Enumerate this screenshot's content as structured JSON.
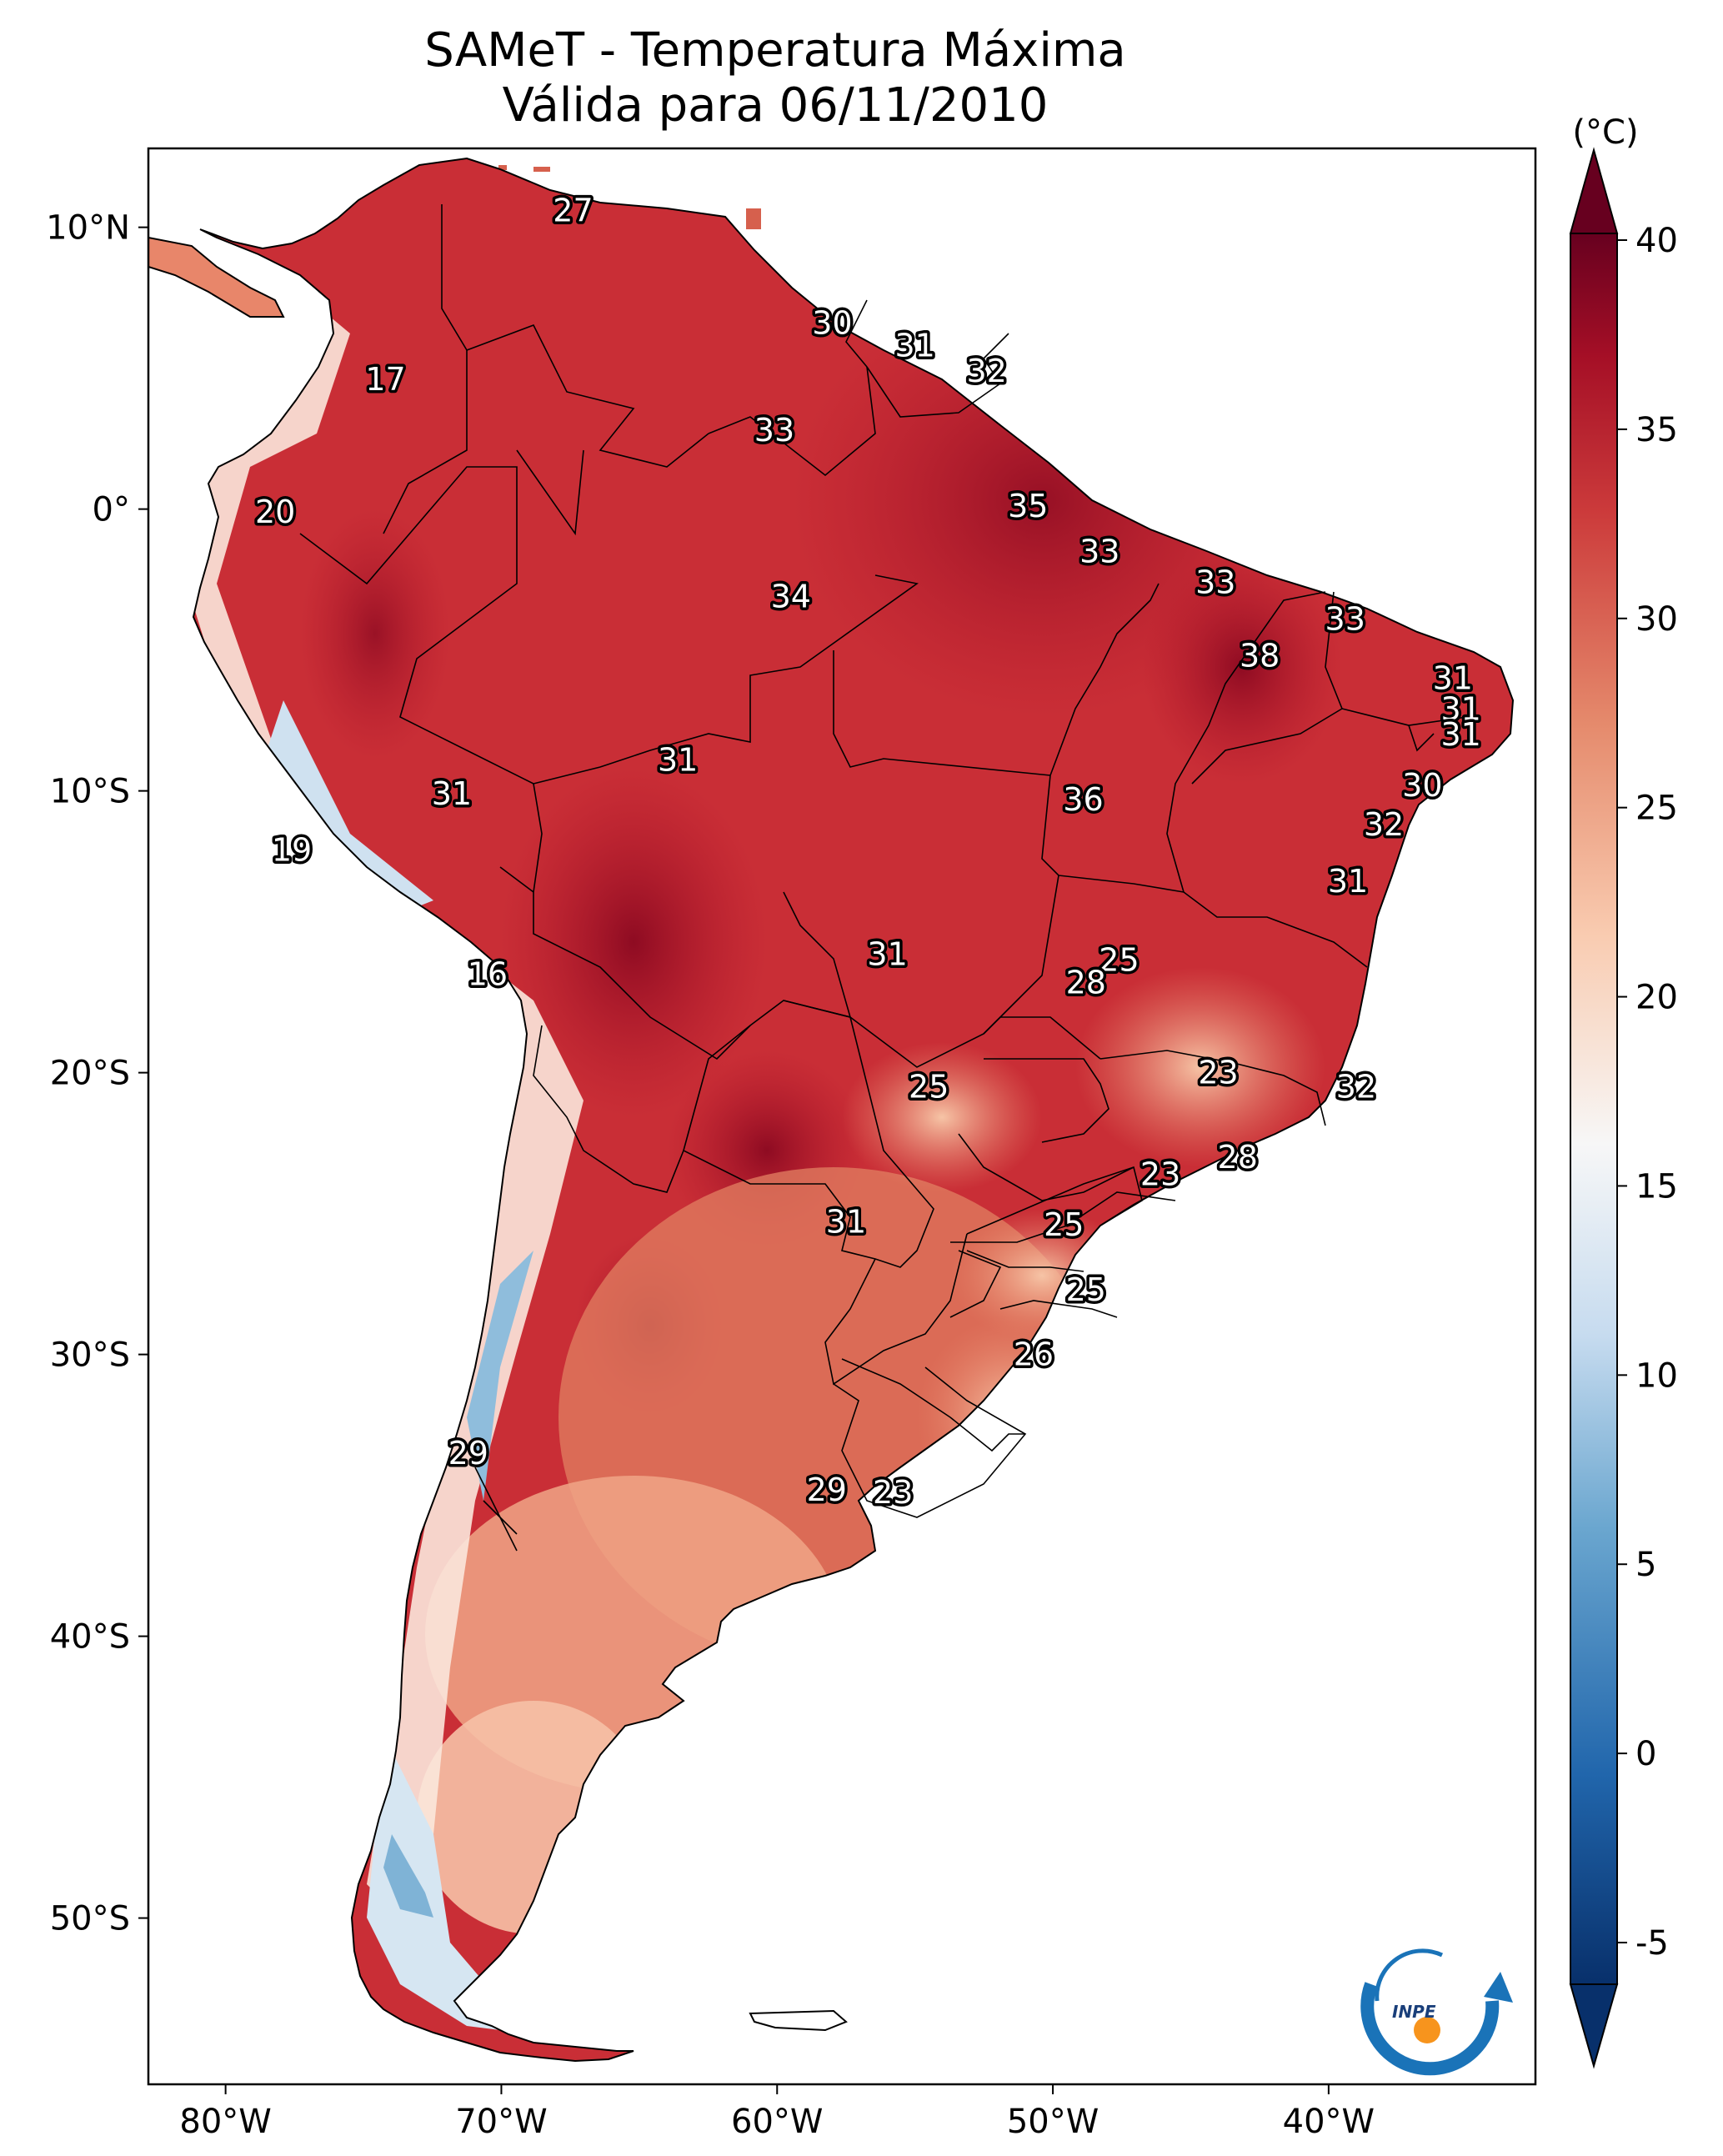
{
  "title": {
    "line1": "SAMeT - Temperatura Máxima",
    "line2": "Válida para 06/11/2010"
  },
  "map": {
    "lon_ticks": [
      {
        "lon": -80,
        "label": "80°W"
      },
      {
        "lon": -70,
        "label": "70°W"
      },
      {
        "lon": -60,
        "label": "60°W"
      },
      {
        "lon": -50,
        "label": "50°W"
      },
      {
        "lon": -40,
        "label": "40°W"
      }
    ],
    "lat_ticks": [
      {
        "lat": 10,
        "label": "10°N"
      },
      {
        "lat": 0,
        "label": "0°"
      },
      {
        "lat": -10,
        "label": "10°S"
      },
      {
        "lat": -20,
        "label": "20°S"
      },
      {
        "lat": -30,
        "label": "30°S"
      },
      {
        "lat": -40,
        "label": "40°S"
      },
      {
        "lat": -50,
        "label": "50°S"
      }
    ],
    "temperature_labels": [
      {
        "lon": -67.4,
        "lat": 10.6,
        "value": "27"
      },
      {
        "lon": -58.0,
        "lat": 6.6,
        "value": "30"
      },
      {
        "lon": -55.0,
        "lat": 5.8,
        "value": "31"
      },
      {
        "lon": -52.4,
        "lat": 4.9,
        "value": "32"
      },
      {
        "lon": -74.2,
        "lat": 4.6,
        "value": "17"
      },
      {
        "lon": -60.1,
        "lat": 2.8,
        "value": "33"
      },
      {
        "lon": -50.9,
        "lat": 0.1,
        "value": "35"
      },
      {
        "lon": -78.2,
        "lat": -0.1,
        "value": "20"
      },
      {
        "lon": -48.3,
        "lat": -1.5,
        "value": "33"
      },
      {
        "lon": -44.1,
        "lat": -2.6,
        "value": "33"
      },
      {
        "lon": -59.5,
        "lat": -3.1,
        "value": "34"
      },
      {
        "lon": -39.4,
        "lat": -3.9,
        "value": "33"
      },
      {
        "lon": -42.5,
        "lat": -5.2,
        "value": "38"
      },
      {
        "lon": -35.5,
        "lat": -6.0,
        "value": "31"
      },
      {
        "lon": -35.2,
        "lat": -7.1,
        "value": "31"
      },
      {
        "lon": -35.2,
        "lat": -8.0,
        "value": "31"
      },
      {
        "lon": -63.6,
        "lat": -8.9,
        "value": "31"
      },
      {
        "lon": -36.6,
        "lat": -9.8,
        "value": "30"
      },
      {
        "lon": -71.8,
        "lat": -10.1,
        "value": "31"
      },
      {
        "lon": -48.9,
        "lat": -10.3,
        "value": "36"
      },
      {
        "lon": -38.0,
        "lat": -11.2,
        "value": "32"
      },
      {
        "lon": -77.6,
        "lat": -12.1,
        "value": "19"
      },
      {
        "lon": -39.3,
        "lat": -13.2,
        "value": "31"
      },
      {
        "lon": -56.0,
        "lat": -15.8,
        "value": "31"
      },
      {
        "lon": -47.6,
        "lat": -16.0,
        "value": "25"
      },
      {
        "lon": -48.8,
        "lat": -16.8,
        "value": "28"
      },
      {
        "lon": -70.5,
        "lat": -16.5,
        "value": "16"
      },
      {
        "lon": -44.0,
        "lat": -20.0,
        "value": "23"
      },
      {
        "lon": -54.5,
        "lat": -20.5,
        "value": "25"
      },
      {
        "lon": -39.0,
        "lat": -20.5,
        "value": "32"
      },
      {
        "lon": -43.3,
        "lat": -23.0,
        "value": "28"
      },
      {
        "lon": -46.1,
        "lat": -23.6,
        "value": "23"
      },
      {
        "lon": -57.5,
        "lat": -25.3,
        "value": "31"
      },
      {
        "lon": -49.6,
        "lat": -25.4,
        "value": "25"
      },
      {
        "lon": -48.8,
        "lat": -27.7,
        "value": "25"
      },
      {
        "lon": -50.7,
        "lat": -30.0,
        "value": "26"
      },
      {
        "lon": -71.2,
        "lat": -33.5,
        "value": "29"
      },
      {
        "lon": -58.2,
        "lat": -34.8,
        "value": "29"
      },
      {
        "lon": -55.8,
        "lat": -34.9,
        "value": "23"
      }
    ]
  },
  "colorbar": {
    "unit_label": "(°C)",
    "min": -5,
    "max": 40,
    "ticks": [
      {
        "value": 40,
        "label": "40"
      },
      {
        "value": 35,
        "label": "35"
      },
      {
        "value": 30,
        "label": "30"
      },
      {
        "value": 25,
        "label": "25"
      },
      {
        "value": 20,
        "label": "20"
      },
      {
        "value": 15,
        "label": "15"
      },
      {
        "value": 10,
        "label": "10"
      },
      {
        "value": 5,
        "label": "5"
      },
      {
        "value": 0,
        "label": "0"
      },
      {
        "value": -5,
        "label": "-5"
      }
    ],
    "colors": {
      "low": "#08306b",
      "mid_blue": "#4a90c2",
      "light_blue": "#c6dbef",
      "neutral": "#f7f7f7",
      "light_red": "#f4a582",
      "mid_red": "#d6604d",
      "high": "#67001f"
    }
  },
  "logo": {
    "text": "INPE",
    "colors": {
      "arc": "#1a73b8",
      "dot": "#f7941d"
    }
  }
}
